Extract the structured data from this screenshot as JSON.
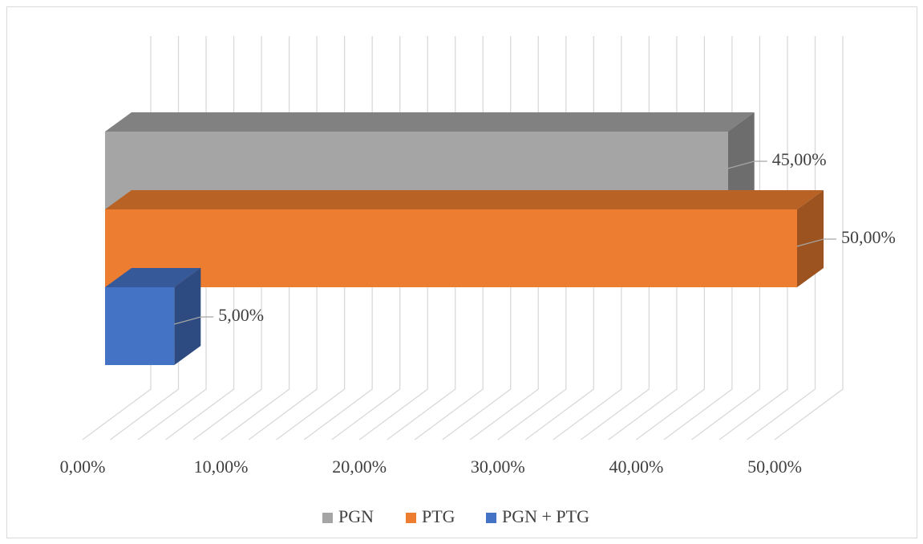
{
  "chart_data": {
    "type": "bar3d",
    "categories": [
      ""
    ],
    "series": [
      {
        "name": "PGN",
        "color": "#a5a5a5",
        "values": [
          45
        ],
        "value_labels": [
          "45,00%"
        ]
      },
      {
        "name": "PTG",
        "color": "#ed7d31",
        "values": [
          50
        ],
        "value_labels": [
          "50,00%"
        ]
      },
      {
        "name": "PGN + PTG",
        "color": "#4472c4",
        "values": [
          5
        ],
        "value_labels": [
          "5,00%"
        ]
      }
    ],
    "xlim": [
      0,
      50
    ],
    "xticks": [
      {
        "value": 0,
        "label": "0,00%"
      },
      {
        "value": 10,
        "label": "10,00%"
      },
      {
        "value": 20,
        "label": "20,00%"
      },
      {
        "value": 30,
        "label": "30,00%"
      },
      {
        "value": 40,
        "label": "40,00%"
      },
      {
        "value": 50,
        "label": "50,00%"
      }
    ],
    "minor_xticks": [
      2,
      4,
      6,
      8,
      12,
      14,
      16,
      18,
      22,
      24,
      26,
      28,
      32,
      34,
      36,
      38,
      42,
      44,
      46,
      48
    ],
    "grid": true,
    "legend": "bottom"
  }
}
